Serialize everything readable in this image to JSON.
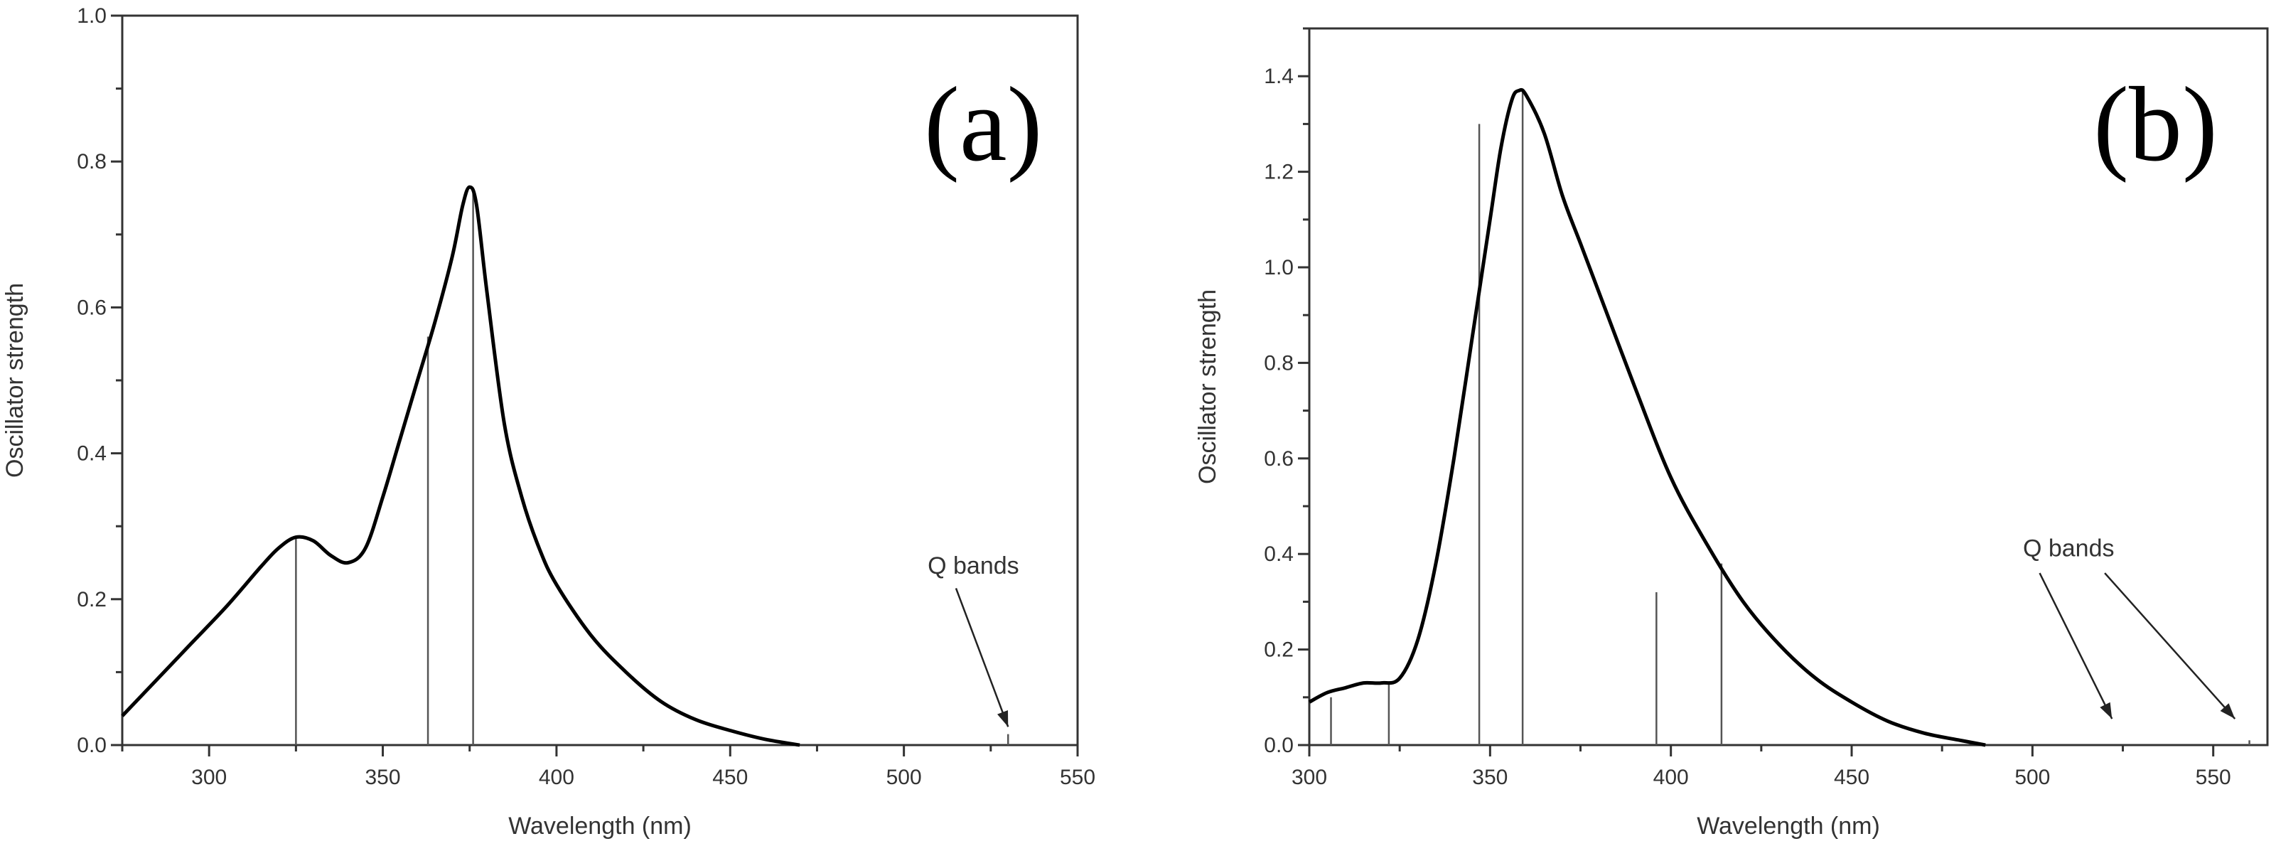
{
  "chart_data": [
    {
      "type": "line",
      "panel_label": "(a)",
      "xlabel": "Wavelength (nm)",
      "ylabel": "Oscillator strength",
      "xlim": [
        275,
        550
      ],
      "ylim": [
        0,
        1.0
      ],
      "xticks": [
        300,
        350,
        400,
        450,
        500,
        550
      ],
      "yticks": [
        0.0,
        0.2,
        0.4,
        0.6,
        0.8,
        1.0
      ],
      "ytick_decimals": 1,
      "curve": {
        "x": [
          275,
          285,
          295,
          305,
          315,
          320,
          325,
          330,
          335,
          340,
          345,
          350,
          355,
          360,
          365,
          370,
          373,
          375,
          377,
          380,
          385,
          390,
          395,
          400,
          410,
          420,
          430,
          440,
          450,
          460,
          470
        ],
        "y": [
          0.04,
          0.09,
          0.14,
          0.19,
          0.245,
          0.27,
          0.285,
          0.28,
          0.26,
          0.25,
          0.27,
          0.34,
          0.42,
          0.5,
          0.58,
          0.67,
          0.74,
          0.765,
          0.74,
          0.62,
          0.44,
          0.34,
          0.27,
          0.22,
          0.15,
          0.1,
          0.06,
          0.035,
          0.02,
          0.008,
          0.0
        ]
      },
      "sticks": {
        "x": [
          325,
          363,
          376,
          530
        ],
        "y": [
          0.285,
          0.56,
          0.76,
          0.015
        ]
      },
      "annotations": [
        {
          "text": "Q bands",
          "x": 520,
          "y": 0.235,
          "arrow_from": [
            515,
            0.215
          ],
          "arrow_to": [
            530,
            0.025
          ]
        }
      ]
    },
    {
      "type": "line",
      "panel_label": "(b)",
      "xlabel": "Wavelength (nm)",
      "ylabel": "Oscillator strength",
      "xlim": [
        300,
        565
      ],
      "ylim": [
        0,
        1.5
      ],
      "xticks": [
        300,
        350,
        400,
        450,
        500,
        550
      ],
      "yticks": [
        0.0,
        0.2,
        0.4,
        0.6,
        0.8,
        1.0,
        1.2,
        1.4
      ],
      "ytick_decimals": 1,
      "curve": {
        "x": [
          300,
          305,
          310,
          315,
          320,
          325,
          330,
          335,
          340,
          345,
          350,
          353,
          356,
          358,
          360,
          365,
          370,
          375,
          380,
          390,
          400,
          410,
          420,
          430,
          440,
          450,
          460,
          470,
          480,
          487
        ],
        "y": [
          0.09,
          0.11,
          0.12,
          0.13,
          0.13,
          0.14,
          0.22,
          0.38,
          0.6,
          0.85,
          1.1,
          1.25,
          1.35,
          1.37,
          1.36,
          1.28,
          1.15,
          1.05,
          0.95,
          0.75,
          0.56,
          0.42,
          0.3,
          0.21,
          0.14,
          0.09,
          0.05,
          0.025,
          0.01,
          0.0
        ]
      },
      "sticks": {
        "x": [
          306,
          322,
          347,
          359,
          396,
          414,
          560
        ],
        "y": [
          0.1,
          0.13,
          1.3,
          1.37,
          0.32,
          0.38,
          0.01
        ]
      },
      "annotations": [
        {
          "text": "Q bands",
          "x": 510,
          "y": 0.395,
          "arrow_from": [
            502,
            0.36
          ],
          "arrow_to": [
            522,
            0.055
          ]
        },
        {
          "arrow_from": [
            520,
            0.36
          ],
          "arrow_to": [
            556,
            0.055
          ]
        }
      ]
    }
  ]
}
